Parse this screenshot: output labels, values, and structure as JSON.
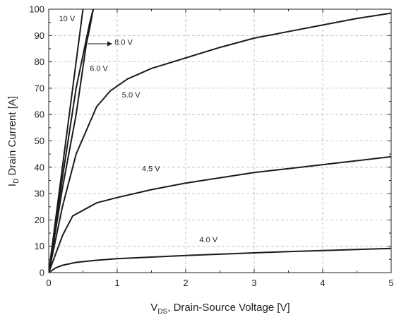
{
  "chart_data": {
    "type": "line",
    "xlabel": "V",
    "xlabel_sub": "DS",
    "xlabel_rest": ", Drain-Source Voltage [V]",
    "ylabel": "I",
    "ylabel_sub": "D",
    "ylabel_rest": " Drain Current [A]",
    "xlim": [
      0,
      5
    ],
    "ylim": [
      0,
      100
    ],
    "xticks": [
      "0",
      "1",
      "2",
      "3",
      "4",
      "5"
    ],
    "yticks": [
      "0",
      "10",
      "20",
      "30",
      "40",
      "50",
      "60",
      "70",
      "80",
      "90",
      "100"
    ],
    "grid": true,
    "series": [
      {
        "name": "10 V",
        "x": [
          0,
          0.1,
          0.2,
          0.3,
          0.4,
          0.5
        ],
        "y": [
          0,
          20,
          40,
          60,
          80,
          100
        ]
      },
      {
        "name": "8.0 V",
        "x": [
          0,
          0.2,
          0.4,
          0.6,
          0.65
        ],
        "y": [
          0,
          36,
          70,
          95,
          100
        ]
      },
      {
        "name": "6.0 V",
        "x": [
          0,
          0.2,
          0.4,
          0.55,
          0.6,
          0.65
        ],
        "y": [
          0,
          32,
          60,
          87,
          93,
          100
        ]
      },
      {
        "name": "5.0 V",
        "x": [
          0,
          0.2,
          0.4,
          0.6,
          0.7,
          0.9,
          1.15,
          1.5,
          2.0,
          2.5,
          3.0,
          3.5,
          4.0,
          4.5,
          5.0
        ],
        "y": [
          0,
          25,
          45,
          57,
          63,
          69,
          73.5,
          77.5,
          81.5,
          85.5,
          89,
          91.5,
          94,
          96.5,
          98.5
        ]
      },
      {
        "name": "4.5 V",
        "x": [
          0,
          0.2,
          0.35,
          0.7,
          1.0,
          1.5,
          2.0,
          2.5,
          3.0,
          3.5,
          4.0,
          4.5,
          5.0
        ],
        "y": [
          0,
          14,
          21.5,
          26.5,
          28.5,
          31.5,
          34,
          36,
          38,
          39.5,
          41,
          42.5,
          44
        ]
      },
      {
        "name": "4.0 V",
        "x": [
          0,
          0.1,
          0.2,
          0.4,
          0.7,
          1.0,
          1.5,
          2.0,
          2.5,
          3.0,
          3.5,
          4.0,
          4.5,
          5.0
        ],
        "y": [
          0,
          1.8,
          2.8,
          3.9,
          4.7,
          5.3,
          5.9,
          6.5,
          7.0,
          7.5,
          8.0,
          8.4,
          8.8,
          9.2
        ]
      }
    ],
    "annotations": [
      {
        "text": "10 V",
        "x": 0.15,
        "y": 95.5
      },
      {
        "text": "8.0 V",
        "x": 0.96,
        "y": 86.5
      },
      {
        "text": "6.0 V",
        "x": 0.6,
        "y": 76.5
      },
      {
        "text": "5.0 V",
        "x": 1.07,
        "y": 66.5
      },
      {
        "text": "4.5 V",
        "x": 1.36,
        "y": 38.5
      },
      {
        "text": "4.0 V",
        "x": 2.2,
        "y": 11.5
      }
    ]
  }
}
